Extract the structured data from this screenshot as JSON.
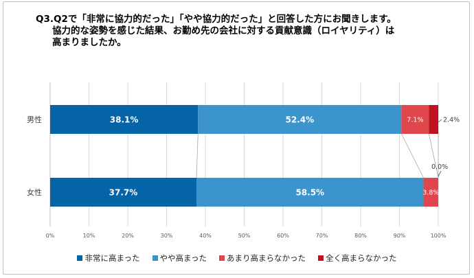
{
  "title_lines": [
    "Q3.Q2で「非常に協力的だった」「やや協力的だった」と回答した方にお聞きします。",
    "協力的な姿勢を感じた結果、お勤め先の会社に対する貢献意識（ロイヤリティ）は",
    "高まりましたか。"
  ],
  "colors": {
    "series": [
      "#0563a8",
      "#3b95cc",
      "#e0474c",
      "#c0111f"
    ],
    "grid": "#d9d9d9",
    "connector": "#a6a6a6"
  },
  "chart_data": {
    "type": "bar",
    "orientation": "horizontal",
    "stacked": true,
    "categories": [
      "男性",
      "女性"
    ],
    "series": [
      {
        "name": "非常に高まった",
        "values": [
          38.1,
          37.7
        ],
        "labels": [
          "38.1%",
          "37.7%"
        ]
      },
      {
        "name": "やや高まった",
        "values": [
          52.4,
          58.5
        ],
        "labels": [
          "52.4%",
          "58.5%"
        ]
      },
      {
        "name": "あまり高まらなかった",
        "values": [
          7.1,
          3.8
        ],
        "labels": [
          "7.1%",
          "3.8%"
        ]
      },
      {
        "name": "全く高まらなかった",
        "values": [
          2.4,
          0.0
        ],
        "labels": [
          "2.4%",
          "0.0%"
        ]
      }
    ],
    "xlim": [
      0,
      100
    ],
    "x_ticks": [
      "0%",
      "10%",
      "20%",
      "30%",
      "40%",
      "50%",
      "60%",
      "70%",
      "80%",
      "90%",
      "100%"
    ],
    "grid": true,
    "legend_position": "bottom",
    "series_lines": true
  }
}
